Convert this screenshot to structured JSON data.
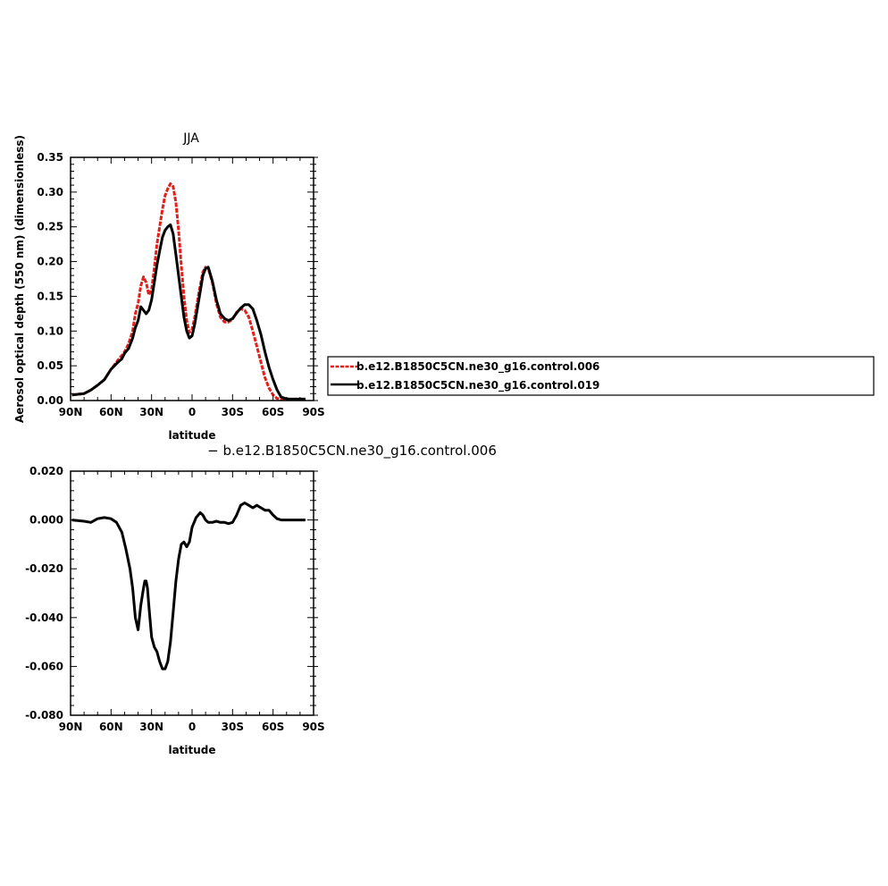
{
  "colors": {
    "series1": "#e0201b",
    "series2": "#000000",
    "axis": "#000000"
  },
  "legend": {
    "entries": [
      "b.e12.B1850C5CN.ne30_g16.control.006",
      "b.e12.B1850C5CN.ne30_g16.control.019"
    ]
  },
  "diff_title": "− b.e12.B1850C5CN.ne30_g16.control.006",
  "chart_data": [
    {
      "type": "line",
      "title": "JJA",
      "xlabel": "latitude",
      "ylabel": "Aerosol optical depth (550 nm) (dimensionless)",
      "xlim": [
        90,
        -90
      ],
      "ylim": [
        0,
        0.35
      ],
      "xticks": [
        90,
        60,
        30,
        0,
        -30,
        -60,
        -90
      ],
      "xticklabels": [
        "90N",
        "60N",
        "30N",
        "0",
        "30S",
        "60S",
        "90S"
      ],
      "yticks": [
        0,
        0.05,
        0.1,
        0.15,
        0.2,
        0.25,
        0.3,
        0.35
      ],
      "yticklabels": [
        "0.00",
        "0.05",
        "0.10",
        "0.15",
        "0.20",
        "0.25",
        "0.30",
        "0.35"
      ],
      "legend_position": "right",
      "series": [
        {
          "name": "b.e12.B1850C5CN.ne30_g16.control.006",
          "x": [
            89,
            80,
            75,
            70,
            65,
            60,
            55,
            52,
            50,
            47,
            44,
            42,
            40,
            38,
            36,
            34,
            32,
            30,
            28,
            26,
            24,
            22,
            20,
            18,
            16,
            14,
            12,
            10,
            8,
            6,
            4,
            2,
            0,
            -2,
            -5,
            -8,
            -10,
            -12,
            -15,
            -18,
            -21,
            -24,
            -27,
            -30,
            -33,
            -36,
            -39,
            -42,
            -45,
            -48,
            -51,
            -54,
            -57,
            -60,
            -63,
            -66,
            -69,
            -72,
            -75,
            -80,
            -84
          ],
          "values": [
            0.008,
            0.01,
            0.015,
            0.022,
            0.03,
            0.045,
            0.058,
            0.065,
            0.07,
            0.082,
            0.1,
            0.125,
            0.14,
            0.165,
            0.178,
            0.17,
            0.152,
            0.16,
            0.19,
            0.225,
            0.25,
            0.275,
            0.295,
            0.305,
            0.312,
            0.308,
            0.285,
            0.245,
            0.195,
            0.15,
            0.115,
            0.098,
            0.102,
            0.12,
            0.155,
            0.185,
            0.192,
            0.19,
            0.17,
            0.14,
            0.12,
            0.113,
            0.113,
            0.117,
            0.127,
            0.132,
            0.13,
            0.12,
            0.1,
            0.078,
            0.055,
            0.033,
            0.018,
            0.008,
            0.003,
            0.002,
            0.002,
            0.002,
            0.002,
            0.002,
            0.002
          ]
        },
        {
          "name": "b.e12.B1850C5CN.ne30_g16.control.019",
          "x": [
            89,
            80,
            75,
            70,
            65,
            60,
            55,
            52,
            50,
            47,
            44,
            42,
            40,
            38,
            36,
            34,
            32,
            30,
            28,
            26,
            24,
            22,
            20,
            18,
            16,
            14,
            12,
            10,
            8,
            6,
            4,
            2,
            0,
            -2,
            -5,
            -8,
            -10,
            -12,
            -15,
            -18,
            -21,
            -24,
            -27,
            -30,
            -33,
            -36,
            -39,
            -42,
            -45,
            -48,
            -51,
            -54,
            -57,
            -60,
            -63,
            -66,
            -69,
            -72,
            -75,
            -80,
            -84
          ],
          "values": [
            0.008,
            0.01,
            0.015,
            0.022,
            0.03,
            0.045,
            0.055,
            0.06,
            0.068,
            0.075,
            0.09,
            0.105,
            0.115,
            0.135,
            0.13,
            0.125,
            0.13,
            0.145,
            0.17,
            0.195,
            0.215,
            0.235,
            0.245,
            0.25,
            0.253,
            0.24,
            0.21,
            0.18,
            0.15,
            0.12,
            0.1,
            0.09,
            0.093,
            0.11,
            0.145,
            0.18,
            0.19,
            0.192,
            0.172,
            0.145,
            0.125,
            0.118,
            0.115,
            0.118,
            0.126,
            0.133,
            0.138,
            0.138,
            0.132,
            0.115,
            0.095,
            0.07,
            0.048,
            0.03,
            0.015,
            0.005,
            0.003,
            0.002,
            0.002,
            0.002,
            0.002
          ]
        }
      ]
    },
    {
      "type": "line",
      "title": "",
      "xlabel": "latitude",
      "xlim": [
        90,
        -90
      ],
      "ylim": [
        -0.08,
        0.02
      ],
      "xticks": [
        90,
        60,
        30,
        0,
        -30,
        -60,
        -90
      ],
      "xticklabels": [
        "90N",
        "60N",
        "30N",
        "0",
        "30S",
        "60S",
        "90S"
      ],
      "yticks": [
        -0.08,
        -0.06,
        -0.04,
        -0.02,
        0,
        0.02
      ],
      "yticklabels": [
        "-0.080",
        "-0.060",
        "-0.040",
        "-0.020",
        "0.000",
        "0.020"
      ],
      "series": [
        {
          "x": [
            89,
            80,
            75,
            70,
            65,
            60,
            56,
            52,
            49,
            46,
            44,
            42,
            40,
            38,
            36,
            35,
            34,
            33,
            32,
            30,
            28,
            26,
            24,
            22,
            20,
            18,
            16,
            14,
            12,
            10,
            8,
            6,
            4,
            2,
            0,
            -3,
            -6,
            -8,
            -10,
            -12,
            -15,
            -18,
            -21,
            -24,
            -27,
            -30,
            -33,
            -36,
            -39,
            -42,
            -45,
            -48,
            -51,
            -54,
            -57,
            -60,
            -63,
            -66,
            -70,
            -75,
            -80,
            -84
          ],
          "values": [
            0.0,
            -0.0005,
            -0.001,
            0.0005,
            0.001,
            0.0005,
            -0.001,
            -0.005,
            -0.012,
            -0.02,
            -0.028,
            -0.04,
            -0.045,
            -0.035,
            -0.028,
            -0.025,
            -0.025,
            -0.028,
            -0.035,
            -0.048,
            -0.052,
            -0.054,
            -0.058,
            -0.061,
            -0.061,
            -0.058,
            -0.05,
            -0.038,
            -0.025,
            -0.016,
            -0.01,
            -0.009,
            -0.011,
            -0.009,
            -0.003,
            0.001,
            0.003,
            0.002,
            0.0,
            -0.001,
            -0.001,
            -0.0005,
            -0.001,
            -0.001,
            -0.0015,
            -0.001,
            0.002,
            0.006,
            0.007,
            0.006,
            0.005,
            0.006,
            0.005,
            0.004,
            0.004,
            0.002,
            0.0005,
            0.0,
            0.0,
            0.0,
            0.0,
            0.0
          ]
        }
      ]
    }
  ]
}
